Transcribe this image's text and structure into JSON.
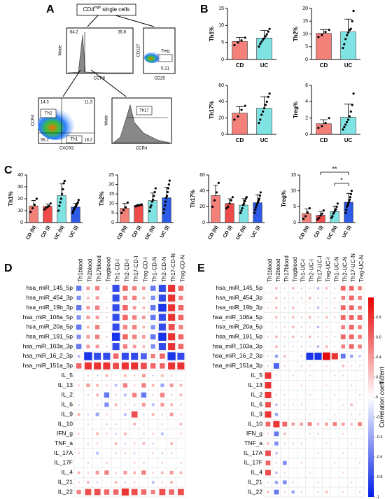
{
  "panel_labels": [
    "A",
    "B",
    "C",
    "D",
    "E"
  ],
  "flow": {
    "gate_title": [
      "CD4",
      "high",
      "single cells"
    ],
    "plot1": {
      "ylabel": "Mode",
      "xlabel": "CCR6",
      "left": "64.2",
      "right": "35.8"
    },
    "plot2": {
      "ylabel": "CD127",
      "xlabel": "CD25",
      "gate": "Treg",
      "value": "5.21"
    },
    "plot3": {
      "ylabel": "CCR4",
      "xlabel": "CXCR3",
      "gate_a": "Th2",
      "gate_b": "Th1",
      "q_ul": "14.3",
      "q_ur": "11.3",
      "q_ll": "56.2",
      "q_lr": "18.2"
    },
    "plot4": {
      "ylabel": "Mode",
      "xlabel": "CCR4",
      "gate": "Th17"
    }
  },
  "chart_data": [
    {
      "type": "bar",
      "ylabel": "Th1%",
      "categories": [
        "CD",
        "UC"
      ],
      "colors": [
        "#f4807a",
        "#7fe3e3"
      ],
      "values": [
        5.3,
        6.3
      ],
      "errors": [
        1.2,
        2.2
      ],
      "points": [
        [
          4.2,
          5.0,
          5.6,
          6.4
        ],
        [
          3.8,
          4.6,
          5.2,
          5.8,
          6.2,
          6.8,
          7.4,
          8.2,
          9.0
        ]
      ],
      "ylim": [
        0,
        15
      ],
      "yticks": [
        0,
        5,
        10,
        15
      ]
    },
    {
      "type": "bar",
      "ylabel": "Th2%",
      "categories": [
        "CD",
        "UC"
      ],
      "colors": [
        "#f4807a",
        "#7fe3e3"
      ],
      "values": [
        10.2,
        10.8
      ],
      "errors": [
        1.5,
        5.0
      ],
      "points": [
        [
          8.8,
          9.6,
          10.8,
          11.6
        ],
        [
          4.5,
          6.0,
          8.0,
          9.5,
          10.5,
          11.5,
          12.0,
          15.0,
          19.0
        ]
      ],
      "ylim": [
        0,
        20
      ],
      "yticks": [
        0,
        5,
        10,
        15,
        20
      ]
    },
    {
      "type": "bar",
      "ylabel": "Th17%",
      "categories": [
        "CD",
        "UC"
      ],
      "colors": [
        "#f4807a",
        "#7fe3e3"
      ],
      "values": [
        26,
        32
      ],
      "errors": [
        8,
        14
      ],
      "points": [
        [
          18,
          22,
          30,
          35
        ],
        [
          14,
          18,
          24,
          28,
          32,
          36,
          40,
          46,
          50
        ]
      ],
      "ylim": [
        0,
        60
      ],
      "yticks": [
        0,
        20,
        40,
        60
      ]
    },
    {
      "type": "bar",
      "ylabel": "Treg%",
      "categories": [
        "CD",
        "UC"
      ],
      "colors": [
        "#f4807a",
        "#7fe3e3"
      ],
      "values": [
        1.3,
        2.1
      ],
      "errors": [
        0.5,
        1.6
      ],
      "points": [
        [
          0.8,
          1.0,
          1.4,
          2.0
        ],
        [
          0.6,
          0.9,
          1.2,
          1.5,
          1.8,
          2.2,
          2.8,
          3.6,
          5.0
        ]
      ],
      "ylim": [
        0,
        6
      ],
      "yticks": [
        0,
        2,
        4,
        6
      ]
    },
    {
      "type": "bar",
      "ylabel": "Th1%",
      "categories": [
        "CD (N)",
        "CD (I)",
        "UC (N)",
        "UC (I)"
      ],
      "colors": [
        "#f4807a",
        "#ee4b4b",
        "#7fe3e3",
        "#2d5ae6"
      ],
      "values": [
        14,
        13.5,
        22.5,
        13
      ],
      "errors": [
        4.5,
        2,
        10,
        3
      ],
      "points": [
        [
          9,
          12,
          15,
          20
        ],
        [
          11,
          12.5,
          13,
          14,
          16
        ],
        [
          10,
          14,
          17,
          20,
          24,
          28,
          33,
          35
        ],
        [
          8,
          9.5,
          11,
          12,
          13,
          14,
          15,
          16,
          17,
          19
        ]
      ],
      "ylim": [
        0,
        40
      ],
      "yticks": [
        0,
        10,
        20,
        30,
        40
      ]
    },
    {
      "type": "bar",
      "ylabel": "Th2%",
      "categories": [
        "CD (N)",
        "CD (I)",
        "UC (N)",
        "UC (I)"
      ],
      "colors": [
        "#f4807a",
        "#ee4b4b",
        "#7fe3e3",
        "#2d5ae6"
      ],
      "values": [
        7.5,
        9,
        11.5,
        13
      ],
      "errors": [
        2.5,
        0.5,
        4,
        5.5
      ],
      "points": [
        [
          5,
          6.5,
          8,
          10.5
        ],
        [
          8.5,
          8.8,
          9,
          9.2,
          9.5
        ],
        [
          6,
          8,
          9,
          11,
          12,
          14,
          16,
          18
        ],
        [
          5,
          7,
          9,
          11,
          13,
          14,
          16,
          18,
          20,
          22
        ]
      ],
      "ylim": [
        0,
        25
      ],
      "yticks": [
        0,
        5,
        10,
        15,
        20,
        25
      ]
    },
    {
      "type": "bar",
      "ylabel": "Th17%",
      "categories": [
        "CD (N)",
        "CD (I)",
        "UC (N)",
        "UC (I)"
      ],
      "colors": [
        "#f4807a",
        "#ee4b4b",
        "#7fe3e3",
        "#2d5ae6"
      ],
      "values": [
        34,
        24,
        22,
        25
      ],
      "errors": [
        13,
        6,
        8,
        10
      ],
      "points": [
        [
          20,
          28,
          38,
          50
        ],
        [
          18,
          20,
          24,
          28,
          32
        ],
        [
          12,
          15,
          18,
          22,
          24,
          27,
          30,
          32
        ],
        [
          12,
          16,
          19,
          22,
          24,
          26,
          28,
          30,
          34,
          38
        ]
      ],
      "ylim": [
        0,
        60
      ],
      "yticks": [
        0,
        20,
        40,
        60
      ]
    },
    {
      "type": "bar",
      "ylabel": "Treg%",
      "categories": [
        "CD (N)",
        "CD (I)",
        "UC (N)",
        "UC (I)"
      ],
      "colors": [
        "#f4807a",
        "#ee4b4b",
        "#7fe3e3",
        "#2d5ae6"
      ],
      "values": [
        2.8,
        2.3,
        3.5,
        6.4
      ],
      "errors": [
        1.5,
        1.2,
        1.7,
        2.8
      ],
      "points": [
        [
          1.2,
          2.0,
          3.2,
          4.5
        ],
        [
          1.0,
          1.5,
          2.2,
          2.8,
          3.8
        ],
        [
          1.5,
          2.0,
          2.8,
          3.2,
          3.8,
          4.2,
          5.0,
          6.0
        ],
        [
          3.0,
          4.0,
          5.0,
          5.5,
          6.0,
          6.5,
          7.2,
          8.0,
          9.0,
          10.0
        ]
      ],
      "ylim": [
        0,
        15
      ],
      "yticks": [
        0,
        5,
        10,
        15
      ],
      "annotations": [
        {
          "text": "**",
          "between": [
            "CD (I)",
            "UC (I)"
          ]
        },
        {
          "text": "*",
          "between": [
            "UC (N)",
            "UC (I)"
          ]
        }
      ]
    },
    {
      "type": "heatmap",
      "columns": [
        "Th1blood",
        "Th2blood",
        "Th17blood",
        "Tregblood",
        "Th1-CD-I",
        "Th2-CD-I",
        "Th17-CD-I",
        "Treg-CD-I",
        "Th1-CD-N",
        "Th2-CD-N",
        "Th17-CD-N",
        "Treg-CD-N"
      ],
      "rows": [
        "hsa_miR_145_5p",
        "hsa_miR_454_3p",
        "hsa_miR_19b_3p",
        "hsa_miR_106a_5p",
        "hsa_miR_20a_5p",
        "hsa_miR_191_5p",
        "hsa_miR_103a_3p",
        "hsa_miR_16_2_3p",
        "hsa_miR_151a_3p",
        "IL_5",
        "IL_13",
        "IL_2",
        "IL_6",
        "IL_9",
        "IL_10",
        "IFN_g",
        "TNF_a",
        "IL_17A",
        "IL_17F",
        "IL_4",
        "IL_21",
        "IL_22"
      ],
      "clim": [
        -1,
        1
      ],
      "values": [
        [
          -0.6,
          0.4,
          0.5,
          0.2,
          -0.8,
          0.6,
          0.5,
          0.4,
          -0.6,
          -0.8,
          0.8,
          0.6
        ],
        [
          -0.5,
          0.3,
          0.4,
          0.1,
          -0.8,
          0.5,
          0.5,
          0.3,
          -0.5,
          -0.8,
          0.8,
          0.5
        ],
        [
          -0.6,
          0.4,
          0.5,
          0.2,
          -0.8,
          0.6,
          0.4,
          0.3,
          -0.6,
          -0.9,
          0.8,
          0.6
        ],
        [
          -0.5,
          0.4,
          0.4,
          0.2,
          -0.8,
          0.6,
          0.5,
          0.4,
          -0.6,
          -0.8,
          0.8,
          0.6
        ],
        [
          -0.6,
          0.3,
          0.5,
          0.1,
          -0.8,
          0.5,
          0.5,
          0.3,
          -0.5,
          -0.8,
          0.7,
          0.5
        ],
        [
          -0.5,
          0.4,
          0.5,
          0.2,
          -0.9,
          0.6,
          0.5,
          0.4,
          -0.6,
          -0.9,
          0.8,
          0.6
        ],
        [
          -0.6,
          0.4,
          0.4,
          0.2,
          -0.8,
          0.5,
          0.4,
          0.3,
          -0.5,
          -0.8,
          0.8,
          0.6
        ],
        [
          -0.3,
          -0.9,
          -0.8,
          -0.8,
          0.6,
          -0.8,
          -0.8,
          -0.7,
          0.5,
          0.6,
          -0.9,
          -0.8
        ],
        [
          0.6,
          0.8,
          0.8,
          0.8,
          0.7,
          0.8,
          0.8,
          0.7,
          0.6,
          0.6,
          0.8,
          0.8
        ],
        [
          0.1,
          0.2,
          -0.2,
          0.3,
          -0.1,
          0.3,
          0.2,
          0.4,
          -0.2,
          0.3,
          0.2,
          0.1
        ],
        [
          0.2,
          0.4,
          0.3,
          0.2,
          -0.3,
          0.5,
          0.2,
          0.5,
          0.3,
          -0.4,
          0.4,
          0.3
        ],
        [
          0.1,
          -0.2,
          0.3,
          -0.6,
          0.2,
          -0.3,
          0.5,
          -0.6,
          0.2,
          0.5,
          -0.2,
          0.3
        ],
        [
          -0.2,
          0.1,
          0.2,
          -0.5,
          0.3,
          0.2,
          -0.2,
          0.4,
          -0.3,
          0.4,
          0.3,
          -0.2
        ],
        [
          0.3,
          -0.2,
          -0.4,
          0.2,
          0.1,
          -0.3,
          0.7,
          -0.2,
          0.3,
          -0.2,
          0.4,
          0.2
        ],
        [
          0.1,
          0.2,
          0.1,
          -0.2,
          0.2,
          0.1,
          0.3,
          0.2,
          -0.1,
          0.2,
          0.1,
          0.3
        ],
        [
          0.2,
          -0.1,
          0.3,
          0.2,
          -0.2,
          0.3,
          0.1,
          -0.2,
          0.2,
          -0.3,
          0.1,
          0.2
        ],
        [
          -0.1,
          0.2,
          0.2,
          0.1,
          0.3,
          -0.2,
          0.2,
          0.3,
          -0.2,
          0.1,
          0.3,
          -0.1
        ],
        [
          0.2,
          0.1,
          -0.3,
          0.1,
          -0.2,
          0.2,
          -0.2,
          0.1,
          0.2,
          -0.2,
          0.2,
          0.1
        ],
        [
          0.1,
          -0.2,
          0.1,
          0.2,
          0.1,
          -0.1,
          0.2,
          -0.2,
          0.1,
          0.2,
          -0.1,
          0.2
        ],
        [
          0.3,
          0.2,
          0.4,
          0.5,
          0.2,
          0.4,
          0.3,
          0.5,
          0.2,
          0.3,
          0.4,
          0.3
        ],
        [
          0.2,
          0.3,
          -0.2,
          0.1,
          0.3,
          -0.2,
          0.2,
          0.1,
          -0.3,
          0.2,
          0.3,
          -0.1
        ],
        [
          0.5,
          0.7,
          0.7,
          0.6,
          0.6,
          0.8,
          0.7,
          0.6,
          0.5,
          0.7,
          0.6,
          0.7
        ]
      ]
    },
    {
      "type": "heatmap",
      "columns": [
        "Th1blood",
        "Th2blood",
        "Th17blood",
        "Tregblood",
        "Th1-UC-I",
        "Th2-UC-I",
        "Th17-UC-I",
        "Treg-UC-I",
        "Th1-UC-N",
        "Th2-UC-N",
        "Th17-UC-N",
        "Treg-UC-N"
      ],
      "rows": [
        "hsa_miR_145_5p",
        "hsa_miR_454_3p",
        "hsa_miR_19b_3p",
        "hsa_miR_106a_5p",
        "hsa_miR_20a_5p",
        "hsa_miR_191_5p",
        "hsa_miR_103a_3p",
        "hsa_miR_16_2_3p",
        "hsa_miR_151a_3p",
        "IL_5",
        "IL_13",
        "IL_2",
        "IL_6",
        "IL_9",
        "IL_10",
        "IFN_g",
        "TNF_a",
        "IL_17A",
        "IL_17F",
        "IL_4",
        "IL_21",
        "IL_22"
      ],
      "clim": [
        -1,
        1
      ],
      "colorbar_ticks": [
        0.8,
        0.6,
        0.4,
        0.2,
        0,
        -0.2,
        -0.4,
        -0.6,
        -0.8,
        -1
      ],
      "colorbar_label": "Correlation coefficient",
      "values": [
        [
          0.1,
          0.3,
          0.2,
          0.3,
          -0.2,
          0.2,
          -0.3,
          0.3,
          0.2,
          0.6,
          0.6,
          0.5
        ],
        [
          0.1,
          0.3,
          0.2,
          0.2,
          -0.2,
          0.3,
          -0.2,
          0.2,
          0.2,
          0.5,
          0.6,
          0.5
        ],
        [
          0.2,
          0.3,
          0.2,
          0.3,
          -0.1,
          0.2,
          -0.3,
          0.2,
          0.2,
          0.6,
          0.6,
          0.5
        ],
        [
          0.1,
          0.3,
          0.2,
          0.3,
          -0.2,
          0.3,
          -0.2,
          0.3,
          0.2,
          0.6,
          0.6,
          0.6
        ],
        [
          0.1,
          0.2,
          0.2,
          0.3,
          -0.2,
          0.2,
          -0.3,
          0.2,
          0.1,
          0.5,
          0.6,
          0.5
        ],
        [
          0.2,
          0.3,
          0.2,
          0.3,
          -0.2,
          0.3,
          -0.2,
          0.2,
          0.2,
          0.6,
          0.6,
          0.5
        ],
        [
          0.1,
          0.3,
          0.2,
          0.2,
          -0.2,
          0.2,
          -0.3,
          0.3,
          0.2,
          0.5,
          0.6,
          0.5
        ],
        [
          0.2,
          -0.4,
          0.3,
          0.1,
          -0.2,
          -0.9,
          -0.9,
          0.95,
          0.8,
          -0.6,
          -0.4,
          -0.3
        ],
        [
          -0.2,
          -0.7,
          0.2,
          0.1,
          0.2,
          0.2,
          0.1,
          0.2,
          0.1,
          0.3,
          0.2,
          0.2
        ],
        [
          0.8,
          -0.2,
          0.1,
          0.2,
          0.1,
          0.2,
          0.1,
          0.1,
          -0.2,
          0.2,
          0.1,
          0.1
        ],
        [
          0.8,
          -0.1,
          0.1,
          0.1,
          0.2,
          0.1,
          -0.1,
          0.2,
          0.1,
          0.1,
          0.2,
          0.1
        ],
        [
          0.8,
          -0.2,
          0.2,
          0.1,
          0.1,
          -0.2,
          0.1,
          0.1,
          0.2,
          0.1,
          0.1,
          0.2
        ],
        [
          0.7,
          -0.3,
          0.2,
          0.2,
          0.2,
          0.1,
          0.1,
          -0.2,
          0.1,
          0.2,
          0.3,
          0.1
        ],
        [
          0.8,
          -0.4,
          0.1,
          0.1,
          0.1,
          0.2,
          0.1,
          0.1,
          0.2,
          0.1,
          0.2,
          -0.2
        ],
        [
          0.6,
          0.8,
          0.6,
          0.4,
          0.4,
          0.5,
          0.3,
          0.4,
          0.5,
          0.4,
          0.3,
          0.5
        ],
        [
          0.2,
          -0.6,
          0.3,
          0.1,
          0.1,
          0.2,
          -0.2,
          0.1,
          0.1,
          0.2,
          0.1,
          0.1
        ],
        [
          0.3,
          -0.5,
          0.2,
          0.2,
          0.2,
          0.1,
          0.1,
          0.2,
          -0.1,
          0.1,
          0.2,
          0.1
        ],
        [
          0.7,
          -0.3,
          0.1,
          0.1,
          0.1,
          0.1,
          0.2,
          0.1,
          0.1,
          0.2,
          0.1,
          0.1
        ],
        [
          0.6,
          -0.2,
          -0.5,
          0.1,
          0.2,
          0.1,
          0.1,
          0.1,
          0.2,
          0.1,
          0.1,
          0.2
        ],
        [
          0.7,
          -0.3,
          0.2,
          0.1,
          0.1,
          0.2,
          0.1,
          0.1,
          0.1,
          0.2,
          0.1,
          0.1
        ],
        [
          0.2,
          -0.4,
          -0.5,
          0.2,
          0.1,
          0.1,
          0.2,
          0.1,
          0.1,
          0.1,
          0.2,
          0.1
        ],
        [
          0.3,
          -0.6,
          0.2,
          -0.4,
          0.2,
          0.1,
          0.2,
          0.3,
          0.1,
          0.2,
          0.1,
          0.2
        ]
      ]
    }
  ]
}
